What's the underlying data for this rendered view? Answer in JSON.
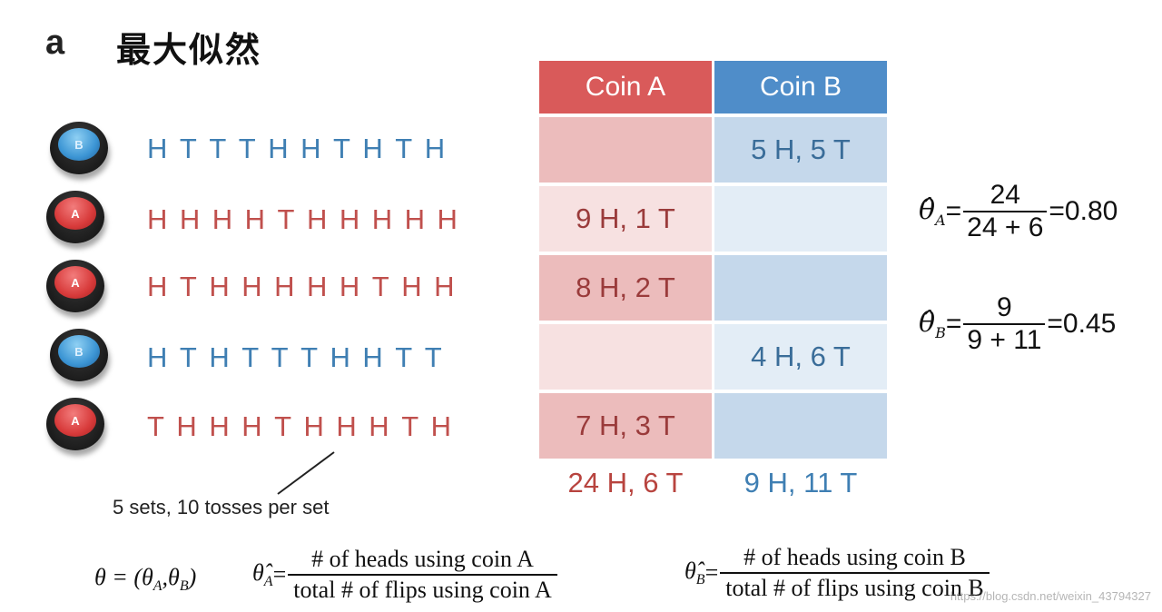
{
  "header": {
    "panel_letter": "a",
    "title": "最大似然"
  },
  "rows": [
    {
      "coin": "B",
      "sequence": "HTTTHHTHTH",
      "cell_a": "",
      "cell_b": "5 H, 5 T"
    },
    {
      "coin": "A",
      "sequence": "HHHHTHHHHH",
      "cell_a": "9 H, 1 T",
      "cell_b": ""
    },
    {
      "coin": "A",
      "sequence": "HTHHHHHTHH",
      "cell_a": "8 H, 2 T",
      "cell_b": ""
    },
    {
      "coin": "B",
      "sequence": "HTHTTTHHTT",
      "cell_a": "",
      "cell_b": "4 H, 6 T"
    },
    {
      "coin": "A",
      "sequence": "THHHTHHHTH",
      "cell_a": "7 H, 3 T",
      "cell_b": ""
    }
  ],
  "table": {
    "header_a": "Coin A",
    "header_b": "Coin B",
    "total_a": "24 H, 6 T",
    "total_b": "9 H, 11 T"
  },
  "annotation": "5 sets, 10 tosses per set",
  "estimates": {
    "a": {
      "symbol": "θ̂",
      "sub": "A",
      "num": "24",
      "den": "24 + 6",
      "result": "=0.80"
    },
    "b": {
      "symbol": "θ̂",
      "sub": "B",
      "num": "9",
      "den": "9 + 11",
      "result": "=0.45"
    }
  },
  "formulas": {
    "theta_def": "θ = (θ",
    "theta_def_sub_a": "A",
    "theta_def_sep": ",θ",
    "theta_def_sub_b": "B",
    "theta_def_end": ")",
    "a_num": "# of heads using coin A",
    "a_den": "total # of flips using coin A",
    "b_num": "# of heads using coin B",
    "b_den": "total # of flips using coin B"
  },
  "watermark": "https://blog.csdn.net/weixin_43794327",
  "colors": {
    "coin_a": "#d95a5a",
    "coin_b": "#4f8dc9"
  }
}
